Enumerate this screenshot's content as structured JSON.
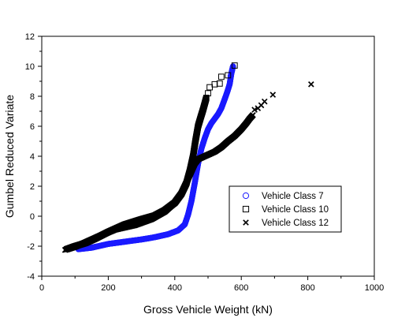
{
  "chart_data": {
    "type": "scatter",
    "xlabel": "Gross Vehicle Weight (kN)",
    "ylabel": "Gumbel Reduced Variate",
    "xlim": [
      0,
      1000
    ],
    "ylim": [
      -4,
      12
    ],
    "xticks": [
      0,
      200,
      400,
      600,
      800,
      1000
    ],
    "yticks": [
      -4,
      -2,
      0,
      2,
      4,
      6,
      8,
      10,
      12
    ],
    "grid": false,
    "legend_position": "lower-right",
    "series": [
      {
        "name": "Vehicle Class 7",
        "marker": "open-circle",
        "color": "#1a1aff",
        "curve": [
          [
            110,
            -2.2
          ],
          [
            150,
            -2.1
          ],
          [
            200,
            -1.85
          ],
          [
            250,
            -1.7
          ],
          [
            300,
            -1.55
          ],
          [
            340,
            -1.4
          ],
          [
            380,
            -1.2
          ],
          [
            410,
            -0.95
          ],
          [
            430,
            -0.55
          ],
          [
            440,
            0.1
          ],
          [
            450,
            1.0
          ],
          [
            460,
            2.2
          ],
          [
            470,
            3.5
          ],
          [
            480,
            4.5
          ],
          [
            490,
            5.2
          ],
          [
            500,
            5.8
          ],
          [
            510,
            6.2
          ],
          [
            520,
            6.5
          ],
          [
            530,
            6.8
          ],
          [
            540,
            7.2
          ],
          [
            550,
            7.8
          ],
          [
            558,
            8.3
          ],
          [
            565,
            8.8
          ],
          [
            570,
            9.5
          ],
          [
            575,
            10.0
          ]
        ],
        "outliers": [
          [
            568,
            9.35
          ],
          [
            572,
            9.7
          ],
          [
            575,
            9.95
          ]
        ]
      },
      {
        "name": "Vehicle Class 10",
        "marker": "open-square",
        "color": "#000000",
        "curve": [
          [
            75,
            -2.2
          ],
          [
            100,
            -2.0
          ],
          [
            130,
            -1.8
          ],
          [
            160,
            -1.5
          ],
          [
            200,
            -1.05
          ],
          [
            250,
            -0.55
          ],
          [
            300,
            -0.2
          ],
          [
            340,
            0.05
          ],
          [
            370,
            0.4
          ],
          [
            400,
            0.9
          ],
          [
            420,
            1.5
          ],
          [
            435,
            2.2
          ],
          [
            445,
            3.0
          ],
          [
            455,
            4.0
          ],
          [
            462,
            5.0
          ],
          [
            470,
            6.0
          ],
          [
            478,
            6.6
          ],
          [
            485,
            7.1
          ],
          [
            490,
            7.5
          ],
          [
            495,
            7.9
          ]
        ],
        "outliers": [
          [
            500,
            8.2
          ],
          [
            505,
            8.6
          ],
          [
            520,
            8.8
          ],
          [
            535,
            8.85
          ],
          [
            540,
            9.3
          ],
          [
            560,
            9.4
          ],
          [
            580,
            10.05
          ]
        ]
      },
      {
        "name": "Vehicle Class 12",
        "marker": "x",
        "color": "#000000",
        "curve": [
          [
            70,
            -2.25
          ],
          [
            100,
            -2.05
          ],
          [
            130,
            -1.75
          ],
          [
            170,
            -1.35
          ],
          [
            220,
            -0.9
          ],
          [
            280,
            -0.6
          ],
          [
            330,
            -0.2
          ],
          [
            370,
            0.3
          ],
          [
            400,
            0.9
          ],
          [
            420,
            1.5
          ],
          [
            430,
            2.0
          ],
          [
            440,
            2.5
          ],
          [
            450,
            3.0
          ],
          [
            460,
            3.5
          ],
          [
            470,
            3.8
          ],
          [
            485,
            3.95
          ],
          [
            500,
            4.1
          ],
          [
            520,
            4.3
          ],
          [
            540,
            4.6
          ],
          [
            560,
            5.0
          ],
          [
            580,
            5.35
          ],
          [
            600,
            5.8
          ],
          [
            615,
            6.2
          ],
          [
            625,
            6.5
          ],
          [
            635,
            6.75
          ]
        ],
        "outliers": [
          [
            640,
            7.1
          ],
          [
            650,
            7.2
          ],
          [
            660,
            7.4
          ],
          [
            670,
            7.65
          ],
          [
            695,
            8.1
          ],
          [
            810,
            8.8
          ]
        ]
      }
    ]
  }
}
